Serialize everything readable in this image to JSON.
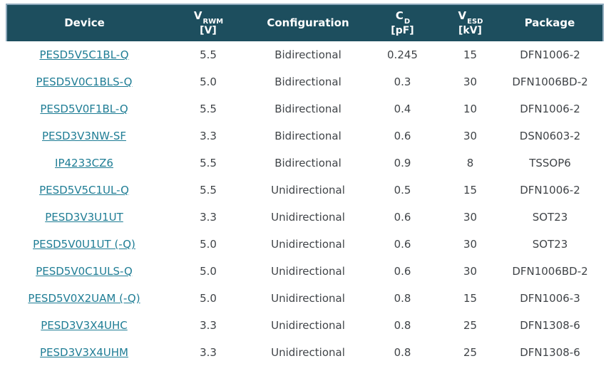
{
  "colors": {
    "header_bg": "#1d4e5e",
    "header_text": "#ffffff",
    "header_border": "#8ea9bc",
    "link": "#1f7d95",
    "body_text": "#404448",
    "background": "#ffffff"
  },
  "table": {
    "columns": [
      {
        "id": "device",
        "label": "Device",
        "sub": "",
        "unit": "",
        "link": true
      },
      {
        "id": "vrwm",
        "label": "V",
        "sub": "RWM",
        "unit": "[V]",
        "link": false
      },
      {
        "id": "configuration",
        "label": "Configuration",
        "sub": "",
        "unit": "",
        "link": false
      },
      {
        "id": "cd",
        "label": "C",
        "sub": "D",
        "unit": "[pF]",
        "link": false
      },
      {
        "id": "vesd",
        "label": "V",
        "sub": "ESD",
        "unit": "[kV]",
        "link": false
      },
      {
        "id": "package",
        "label": "Package",
        "sub": "",
        "unit": "",
        "link": false
      }
    ],
    "rows": [
      [
        "PESD5V5C1BL-Q",
        "5.5",
        "Bidirectional",
        "0.245",
        "15",
        "DFN1006-2"
      ],
      [
        "PESD5V0C1BLS-Q",
        "5.0",
        "Bidirectional",
        "0.3",
        "30",
        "DFN1006BD-2"
      ],
      [
        "PESD5V0F1BL-Q",
        "5.5",
        "Bidirectional",
        "0.4",
        "10",
        "DFN1006-2"
      ],
      [
        "PESD3V3NW-SF",
        "3.3",
        "Bidirectional",
        "0.6",
        "30",
        "DSN0603-2"
      ],
      [
        "IP4233CZ6",
        "5.5",
        "Bidirectional",
        "0.9",
        "8",
        "TSSOP6"
      ],
      [
        "PESD5V5C1UL-Q",
        "5.5",
        "Unidirectional",
        "0.5",
        "15",
        "DFN1006-2"
      ],
      [
        "PESD3V3U1UT",
        "3.3",
        "Unidirectional",
        "0.6",
        "30",
        "SOT23"
      ],
      [
        "PESD5V0U1UT (-Q)",
        "5.0",
        "Unidirectional",
        "0.6",
        "30",
        "SOT23"
      ],
      [
        "PESD5V0C1ULS-Q",
        "5.0",
        "Unidirectional",
        "0.6",
        "30",
        "DFN1006BD-2"
      ],
      [
        "PESD5V0X2UAM (-Q)",
        "5.0",
        "Unidirectional",
        "0.8",
        "15",
        "DFN1006-3"
      ],
      [
        "PESD3V3X4UHC",
        "3.3",
        "Unidirectional",
        "0.8",
        "25",
        "DFN1308-6"
      ],
      [
        "PESD3V3X4UHM",
        "3.3",
        "Unidirectional",
        "0.8",
        "25",
        "DFN1308-6"
      ]
    ]
  }
}
